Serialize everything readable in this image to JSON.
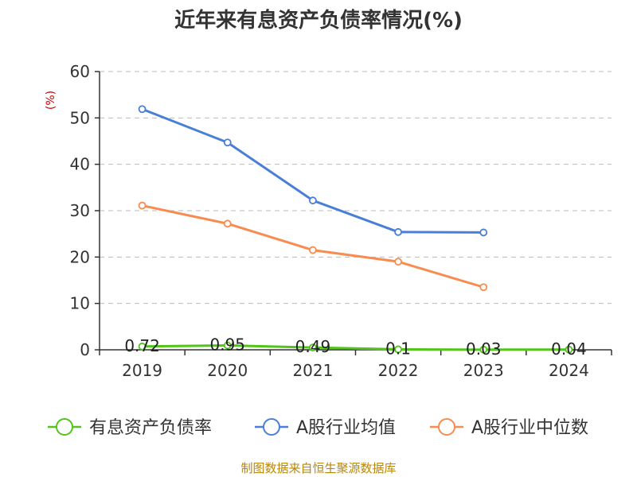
{
  "chart_data": {
    "type": "line",
    "title": "近年来有息资产负债率情况(%)",
    "y_unit": "(%)",
    "categories": [
      "2019",
      "2020",
      "2021",
      "2022",
      "2023",
      "2024"
    ],
    "ylim": [
      0,
      60
    ],
    "yticks": [
      "0",
      "10",
      "20",
      "30",
      "40",
      "50",
      "60"
    ],
    "grid": true,
    "legend_position": "bottom",
    "series": [
      {
        "name": "有息资产负债率",
        "color": "#52c41a",
        "values": [
          0.72,
          0.95,
          0.49,
          0.1,
          0.03,
          0.04
        ],
        "labels": [
          "0.72",
          "0.95",
          "0.49",
          "0.1",
          "0.03",
          "0.04"
        ]
      },
      {
        "name": "A股行业均值",
        "color": "#4a7fd8",
        "values": [
          51.9,
          44.7,
          32.2,
          25.4,
          25.3,
          null
        ]
      },
      {
        "name": "A股行业中位数",
        "color": "#f88b4f",
        "values": [
          31.1,
          27.2,
          21.5,
          19.0,
          13.5,
          null
        ]
      }
    ],
    "source": "制图数据来自恒生聚源数据库"
  }
}
